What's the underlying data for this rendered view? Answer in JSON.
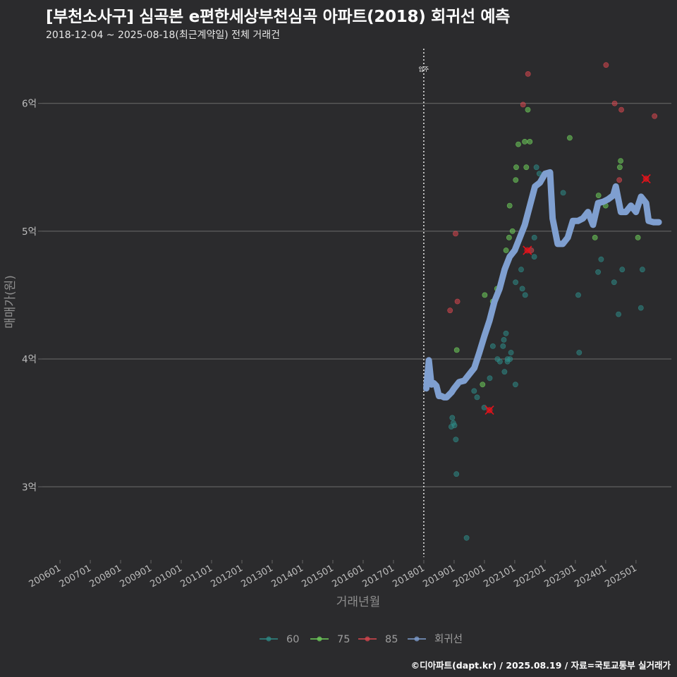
{
  "title": "[부천소사구] 심곡본 e편한세상부천심곡 아파트(2018) 회귀선 예측",
  "subtitle": "2018-12-04 ~ 2025-08-18(최근계약일) 전체 거래건",
  "caption": "©디아파트(dapt.kr) / 2025.08.19 / 자료=국토교통부 실거래가",
  "colors": {
    "background": "#2b2b2d",
    "grid": "#5b5b5b",
    "60": "#2e8b87",
    "75": "#6fcf5b",
    "85": "#d9474f",
    "regression": "#7f9fd0",
    "highlight": "#e3131b"
  },
  "chart_data": {
    "type": "scatter",
    "xlabel": "거래년월",
    "ylabel": "매매가(원)",
    "x_ticks": [
      "200601",
      "200701",
      "200801",
      "200901",
      "201001",
      "201101",
      "201201",
      "201301",
      "201401",
      "201501",
      "201601",
      "201701",
      "201801",
      "201901",
      "202001",
      "202101",
      "202201",
      "202301",
      "202401",
      "202501"
    ],
    "y_ticks": [
      {
        "value": 3.0,
        "label": "3억"
      },
      {
        "value": 4.0,
        "label": "4억"
      },
      {
        "value": 5.0,
        "label": "5억"
      },
      {
        "value": 6.0,
        "label": "6억"
      }
    ],
    "xlim": [
      "2005-06",
      "2026-03"
    ],
    "ylim": [
      2.45,
      6.45
    ],
    "y_unit": "억",
    "grid": true,
    "legend_position": "bottom",
    "annotation": {
      "text": "입주",
      "x": "2018-01"
    },
    "series": [
      {
        "name": "60",
        "type": "scatter",
        "points": [
          [
            "2018-12",
            3.5
          ],
          [
            "2018-12",
            3.47
          ],
          [
            "2019-01",
            3.54
          ],
          [
            "2019-01",
            3.48
          ],
          [
            "2019-02",
            3.37
          ],
          [
            "2019-02",
            3.1
          ],
          [
            "2019-07",
            2.6
          ],
          [
            "2019-09",
            3.7
          ],
          [
            "2019-09",
            3.75
          ],
          [
            "2020-02",
            3.62
          ],
          [
            "2020-03",
            3.85
          ],
          [
            "2020-05",
            4.1
          ],
          [
            "2020-06",
            3.98
          ],
          [
            "2020-07",
            4.0
          ],
          [
            "2020-08",
            4.15
          ],
          [
            "2020-09",
            4.1
          ],
          [
            "2020-09",
            3.98
          ],
          [
            "2020-10",
            4.2
          ],
          [
            "2020-10",
            3.9
          ],
          [
            "2020-11",
            4.05
          ],
          [
            "2020-11",
            4.0
          ],
          [
            "2020-12",
            3.8
          ],
          [
            "2020-12",
            4.0
          ],
          [
            "2021-01",
            4.6
          ],
          [
            "2021-03",
            4.7
          ],
          [
            "2021-05",
            4.5
          ],
          [
            "2021-05",
            4.55
          ],
          [
            "2021-08",
            4.8
          ],
          [
            "2021-09",
            4.95
          ],
          [
            "2021-10",
            5.5
          ],
          [
            "2021-10",
            5.45
          ],
          [
            "2022-09",
            5.3
          ],
          [
            "2023-02",
            4.5
          ],
          [
            "2023-02",
            4.05
          ],
          [
            "2023-10",
            4.68
          ],
          [
            "2023-11",
            4.78
          ],
          [
            "2024-04",
            4.6
          ],
          [
            "2024-05",
            4.35
          ],
          [
            "2024-07",
            4.7
          ],
          [
            "2025-03",
            4.7
          ],
          [
            "2025-03",
            4.4
          ]
        ]
      },
      {
        "name": "75",
        "type": "scatter",
        "points": [
          [
            "2019-01",
            4.07
          ],
          [
            "2019-11",
            3.8
          ],
          [
            "2020-01",
            4.5
          ],
          [
            "2020-03",
            4.45
          ],
          [
            "2020-07",
            4.55
          ],
          [
            "2020-10",
            4.85
          ],
          [
            "2020-11",
            5.0
          ],
          [
            "2020-11",
            4.95
          ],
          [
            "2020-12",
            5.2
          ],
          [
            "2021-02",
            5.4
          ],
          [
            "2021-02",
            5.5
          ],
          [
            "2021-03",
            5.68
          ],
          [
            "2021-05",
            5.7
          ],
          [
            "2021-06",
            5.5
          ],
          [
            "2021-07",
            5.7
          ],
          [
            "2021-07",
            5.95
          ],
          [
            "2022-10",
            5.73
          ],
          [
            "2023-09",
            4.95
          ],
          [
            "2023-09",
            5.28
          ],
          [
            "2024-02",
            5.2
          ],
          [
            "2024-06",
            5.55
          ],
          [
            "2024-07",
            5.5
          ],
          [
            "2025-02",
            4.95
          ]
        ]
      },
      {
        "name": "85",
        "type": "scatter",
        "points": [
          [
            "2018-12",
            4.38
          ],
          [
            "2019-01",
            4.45
          ],
          [
            "2019-01",
            4.98
          ],
          [
            "2021-04",
            5.99
          ],
          [
            "2021-07",
            6.23
          ],
          [
            "2021-08",
            4.85
          ],
          [
            "2023-12",
            6.3
          ],
          [
            "2024-04",
            6.0
          ],
          [
            "2024-07",
            5.4
          ],
          [
            "2024-08",
            5.95
          ],
          [
            "2025-08",
            5.9
          ]
        ]
      },
      {
        "name": "회귀선",
        "type": "line",
        "points": [
          [
            "2018-02",
            3.77
          ],
          [
            "2018-03",
            3.99
          ],
          [
            "2018-04",
            3.8
          ],
          [
            "2018-05",
            3.81
          ],
          [
            "2018-06",
            3.79
          ],
          [
            "2018-07",
            3.71
          ],
          [
            "2018-08",
            3.71
          ],
          [
            "2018-09",
            3.7
          ],
          [
            "2018-10",
            3.7
          ],
          [
            "2018-11",
            3.72
          ],
          [
            "2018-12",
            3.74
          ],
          [
            "2019-01",
            3.77
          ],
          [
            "2019-03",
            3.82
          ],
          [
            "2019-05",
            3.83
          ],
          [
            "2019-07",
            3.88
          ],
          [
            "2019-09",
            3.93
          ],
          [
            "2019-11",
            4.05
          ],
          [
            "2020-01",
            4.18
          ],
          [
            "2020-03",
            4.3
          ],
          [
            "2020-05",
            4.45
          ],
          [
            "2020-07",
            4.55
          ],
          [
            "2020-09",
            4.7
          ],
          [
            "2020-11",
            4.8
          ],
          [
            "2021-01",
            4.85
          ],
          [
            "2021-03",
            4.95
          ],
          [
            "2021-05",
            5.05
          ],
          [
            "2021-07",
            5.2
          ],
          [
            "2021-09",
            5.35
          ],
          [
            "2021-11",
            5.38
          ],
          [
            "2022-01",
            5.45
          ],
          [
            "2022-03",
            5.46
          ],
          [
            "2022-04",
            5.1
          ],
          [
            "2022-06",
            4.9
          ],
          [
            "2022-08",
            4.9
          ],
          [
            "2022-10",
            4.95
          ],
          [
            "2022-12",
            5.08
          ],
          [
            "2023-02",
            5.08
          ],
          [
            "2023-04",
            5.1
          ],
          [
            "2023-06",
            5.15
          ],
          [
            "2023-08",
            5.05
          ],
          [
            "2023-10",
            5.22
          ],
          [
            "2023-12",
            5.23
          ],
          [
            "2024-02",
            5.25
          ],
          [
            "2024-04",
            5.28
          ],
          [
            "2024-05",
            5.35
          ],
          [
            "2024-06",
            5.25
          ],
          [
            "2024-07",
            5.15
          ],
          [
            "2024-09",
            5.15
          ],
          [
            "2024-11",
            5.2
          ],
          [
            "2025-01",
            5.15
          ],
          [
            "2025-03",
            5.27
          ],
          [
            "2025-05",
            5.22
          ],
          [
            "2025-06",
            5.08
          ],
          [
            "2025-08",
            5.07
          ],
          [
            "2025-10",
            5.07
          ]
        ]
      }
    ],
    "highlights": [
      {
        "x": "2020-03",
        "y": 3.6
      },
      {
        "x": "2021-06",
        "y": 4.85
      },
      {
        "x": "2025-05",
        "y": 5.41
      }
    ]
  }
}
